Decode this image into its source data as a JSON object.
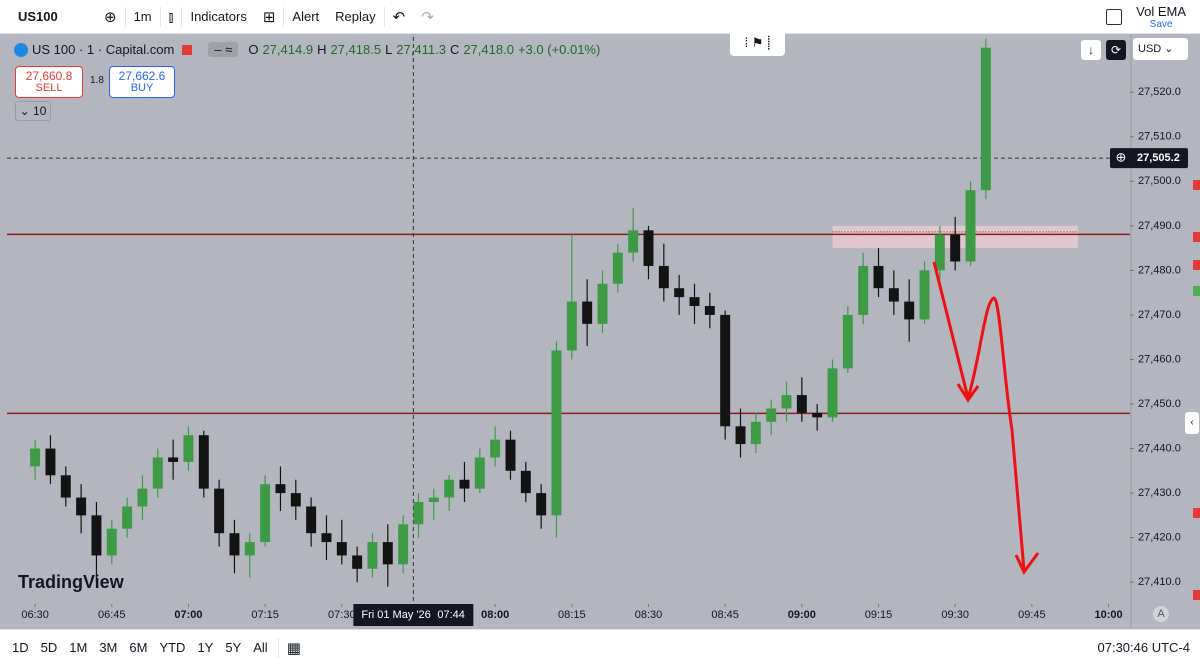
{
  "ui": {
    "symbol": "US100",
    "interval": "1m",
    "indicators": "Indicators",
    "alert": "Alert",
    "replay": "Replay",
    "vol_ema": "Vol EMA",
    "save": "Save",
    "legend": {
      "name": "US 100 · 1 · Capital.com",
      "o": "O",
      "o_val": "27,414.9",
      "h": "H",
      "h_val": "27,418.5",
      "l": "L",
      "l_val": "27,411.3",
      "c": "C",
      "c_val": "27,418.0",
      "change": "+3.0 (+0.01%)"
    },
    "sell_price": "27,660.8",
    "sell": "SELL",
    "spread": "1.8",
    "buy_price": "27,662.6",
    "buy": "BUY",
    "volume_count": "10",
    "currency": "USD",
    "logo": "TradingView",
    "auto": "A",
    "ranges": [
      "1D",
      "5D",
      "1M",
      "3M",
      "6M",
      "YTD",
      "1Y",
      "5Y",
      "All"
    ],
    "clock": "07:30:46 UTC-4"
  },
  "chart_data": {
    "type": "candlestick",
    "xlim": [
      -5.5,
      214.2
    ],
    "xticks": [
      {
        "value": 0,
        "label": "06:30"
      },
      {
        "value": 15,
        "label": "06:45"
      },
      {
        "value": 30,
        "label": "07:00"
      },
      {
        "value": 45,
        "label": "07:15"
      },
      {
        "value": 60,
        "label": "07:30"
      },
      {
        "value": 90,
        "label": "08:00"
      },
      {
        "value": 105,
        "label": "08:15"
      },
      {
        "value": 120,
        "label": "08:30"
      },
      {
        "value": 135,
        "label": "08:45"
      },
      {
        "value": 150,
        "label": "09:00"
      },
      {
        "value": 165,
        "label": "09:15"
      },
      {
        "value": 180,
        "label": "09:30"
      },
      {
        "value": 195,
        "label": "09:45"
      },
      {
        "value": 210,
        "label": "10:00"
      }
    ],
    "ylim": [
      27405.1,
      27532.4
    ],
    "yticks": [
      {
        "value": 27410,
        "label": "27,410.0"
      },
      {
        "value": 27420,
        "label": "27,420.0"
      },
      {
        "value": 27430,
        "label": "27,430.0"
      },
      {
        "value": 27440,
        "label": "27,440.0"
      },
      {
        "value": 27450,
        "label": "27,450.0"
      },
      {
        "value": 27460,
        "label": "27,460.0"
      },
      {
        "value": 27470,
        "label": "27,470.0"
      },
      {
        "value": 27480,
        "label": "27,480.0"
      },
      {
        "value": 27490,
        "label": "27,490.0"
      },
      {
        "value": 27500,
        "label": "27,500.0"
      },
      {
        "value": 27510,
        "label": "27,510.0"
      },
      {
        "value": 27520,
        "label": "27,520.0"
      }
    ],
    "up_color": "#3e9b45",
    "down_color": "#131313",
    "candles": {
      "x": [
        0,
        3,
        6,
        9,
        12,
        15,
        18,
        21,
        24,
        27,
        30,
        33,
        36,
        39,
        42,
        45,
        48,
        51,
        54,
        57,
        60,
        63,
        66,
        69,
        72,
        75,
        78,
        81,
        84,
        87,
        90,
        93,
        96,
        99,
        102,
        105,
        108,
        111,
        114,
        117,
        120,
        123,
        126,
        129,
        132,
        135,
        138,
        141,
        144,
        147,
        150,
        153,
        156,
        159,
        162,
        165,
        168,
        171,
        174,
        177,
        180,
        183,
        186
      ],
      "open": [
        27436,
        27440,
        27434,
        27429,
        27425,
        27416,
        27422,
        27427,
        27431,
        27438,
        27437,
        27443,
        27431,
        27421,
        27416,
        27419,
        27432,
        27430,
        27427,
        27421,
        27419,
        27416,
        27413,
        27419,
        27414,
        27423,
        27428,
        27429,
        27433,
        27431,
        27438,
        27442,
        27435,
        27430,
        27425,
        27462,
        27473,
        27468,
        27477,
        27484,
        27489,
        27481,
        27476,
        27474,
        27472,
        27470,
        27445,
        27441,
        27446,
        27449,
        27452,
        27448,
        27447,
        27458,
        27470,
        27481,
        27476,
        27473,
        27469,
        27480,
        27488,
        27482,
        27498
      ],
      "high": [
        27442,
        27443,
        27436,
        27432,
        27428,
        27424,
        27429,
        27434,
        27440,
        27442,
        27445,
        27444,
        27433,
        27424,
        27421,
        27434,
        27436,
        27433,
        27429,
        27425,
        27424,
        27418,
        27421,
        27423,
        27425,
        27430,
        27431,
        27434,
        27437,
        27440,
        27445,
        27444,
        27437,
        27432,
        27464,
        27488,
        27478,
        27480,
        27486,
        27494,
        27490,
        27486,
        27479,
        27477,
        27475,
        27471,
        27449,
        27448,
        27451,
        27455,
        27456,
        27450,
        27460,
        27472,
        27484,
        27485,
        27480,
        27478,
        27482,
        27490,
        27492,
        27500,
        27532
      ],
      "low": [
        27433,
        27432,
        27427,
        27421,
        27410,
        27414,
        27420,
        27424,
        27429,
        27433,
        27435,
        27429,
        27418,
        27412,
        27411,
        27418,
        27426,
        27424,
        27418,
        27415,
        27414,
        27410,
        27411,
        27409,
        27412,
        27420,
        27424,
        27426,
        27428,
        27430,
        27436,
        27433,
        27428,
        27422,
        27420,
        27460,
        27463,
        27466,
        27475,
        27482,
        27478,
        27473,
        27470,
        27468,
        27467,
        27442,
        27438,
        27439,
        27443,
        27446,
        27446,
        27444,
        27446,
        27457,
        27468,
        27474,
        27470,
        27464,
        27468,
        27478,
        27480,
        27481,
        27496
      ],
      "close": [
        27440,
        27434,
        27429,
        27425,
        27416,
        27422,
        27427,
        27431,
        27438,
        27437,
        27443,
        27431,
        27421,
        27416,
        27419,
        27432,
        27430,
        27427,
        27421,
        27419,
        27416,
        27413,
        27419,
        27414,
        27423,
        27428,
        27429,
        27433,
        27431,
        27438,
        27442,
        27435,
        27430,
        27425,
        27462,
        27473,
        27468,
        27477,
        27484,
        27489,
        27481,
        27476,
        27474,
        27472,
        27470,
        27445,
        27441,
        27446,
        27449,
        27452,
        27448,
        27447,
        27458,
        27470,
        27481,
        27476,
        27473,
        27469,
        27480,
        27488,
        27482,
        27498,
        27530
      ]
    },
    "hlines": [
      {
        "value": 27488.1,
        "color": "#8b1a1a"
      },
      {
        "value": 27447.9,
        "color": "#8b1a1a"
      }
    ],
    "zone": {
      "ylim": [
        27485,
        27490
      ],
      "xlim": [
        156,
        204
      ],
      "color": "#e9c9cf"
    },
    "crosshair": {
      "x": 74,
      "y": {
        "value": 27505.2,
        "label": "27,505.2"
      },
      "date": "Fri 01 May '26",
      "time": "07:44"
    }
  }
}
